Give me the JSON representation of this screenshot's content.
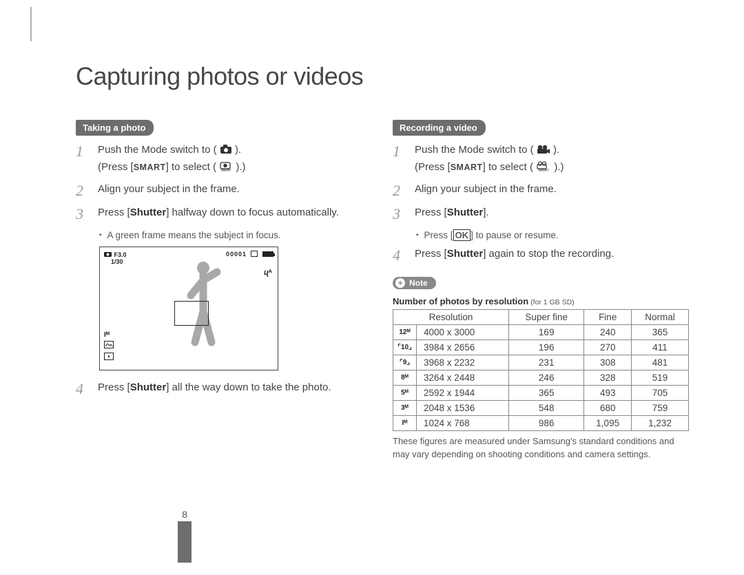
{
  "page_title": "Capturing photos or videos",
  "page_number": "8",
  "left": {
    "section_label": "Taking a photo",
    "step1_a": "Push the Mode switch to (",
    "step1_b": ").",
    "step1_c": "(Press [",
    "step1_smart": "SMART",
    "step1_d": "] to select (",
    "step1_e": ").)",
    "step2": "Align your subject in the frame.",
    "step3_a": "Press [",
    "step3_b": "Shutter",
    "step3_c": "] halfway down to focus automatically.",
    "sub3": "A green frame means the subject in focus.",
    "step4_a": "Press [",
    "step4_b": "Shutter",
    "step4_c": "] all the way down to take the photo.",
    "vf": {
      "f": "F3.0",
      "sp": "1/30",
      "counter": "00001",
      "flash": "ⴗᴬ",
      "im": "Iᴹ"
    }
  },
  "right": {
    "section_label": "Recording a video",
    "step1_a": "Push the Mode switch to (",
    "step1_b": ").",
    "step1_c": "(Press [",
    "step1_smart": "SMART",
    "step1_d": "] to select (",
    "step1_e": ").)",
    "step2": "Align your subject in the frame.",
    "step3_a": "Press [",
    "step3_b": "Shutter",
    "step3_c": "].",
    "sub3_a": "Press [",
    "sub3_ok": "OK",
    "sub3_b": "] to pause or resume.",
    "step4_a": "Press [",
    "step4_b": "Shutter",
    "step4_c": "] again to stop the recording.",
    "note_label": "Note",
    "table_caption_bold": "Number of photos by resolution",
    "table_caption_sub": " (for 1 GB SD)",
    "columns": [
      "Resolution",
      "Super fine",
      "Fine",
      "Normal"
    ],
    "rows": [
      {
        "icon": "12ᴹ",
        "dim": "4000 x 3000",
        "sf": "169",
        "f": "240",
        "n": "365"
      },
      {
        "icon": "⌜10⌟",
        "dim": "3984 x 2656",
        "sf": "196",
        "f": "270",
        "n": "411"
      },
      {
        "icon": "⌜9⌟",
        "dim": "3968 x 2232",
        "sf": "231",
        "f": "308",
        "n": "481"
      },
      {
        "icon": "8ᴹ",
        "dim": "3264 x 2448",
        "sf": "246",
        "f": "328",
        "n": "519"
      },
      {
        "icon": "5ᴹ",
        "dim": "2592 x 1944",
        "sf": "365",
        "f": "493",
        "n": "705"
      },
      {
        "icon": "3ᴹ",
        "dim": "2048 x 1536",
        "sf": "548",
        "f": "680",
        "n": "759"
      },
      {
        "icon": "Iᴹ",
        "dim": "1024 x 768",
        "sf": "986",
        "f": "1,095",
        "n": "1,232"
      }
    ],
    "footnote": "These figures are measured under Samsung's standard conditions and may vary depending on shooting conditions and camera settings."
  }
}
